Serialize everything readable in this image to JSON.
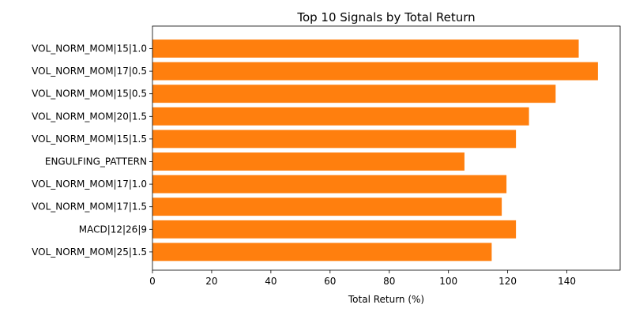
{
  "chart_data": {
    "type": "bar",
    "orientation": "horizontal",
    "title": "Top 10 Signals by Total Return",
    "xlabel": "Total Return (%)",
    "ylabel": "",
    "xlim": [
      0,
      158
    ],
    "xticks": [
      0,
      20,
      40,
      60,
      80,
      100,
      120,
      140
    ],
    "grid": false,
    "bar_color": "#ff7f0e",
    "categories": [
      "VOL_NORM_MOM|15|1.0",
      "VOL_NORM_MOM|17|0.5",
      "VOL_NORM_MOM|15|0.5",
      "VOL_NORM_MOM|20|1.5",
      "VOL_NORM_MOM|15|1.5",
      "ENGULFING_PATTERN",
      "VOL_NORM_MOM|17|1.0",
      "VOL_NORM_MOM|17|1.5",
      "MACD|12|26|9",
      "VOL_NORM_MOM|25|1.5"
    ],
    "values": [
      144.0,
      150.5,
      136.2,
      127.2,
      122.8,
      105.4,
      119.6,
      118.0,
      122.8,
      114.6
    ]
  }
}
